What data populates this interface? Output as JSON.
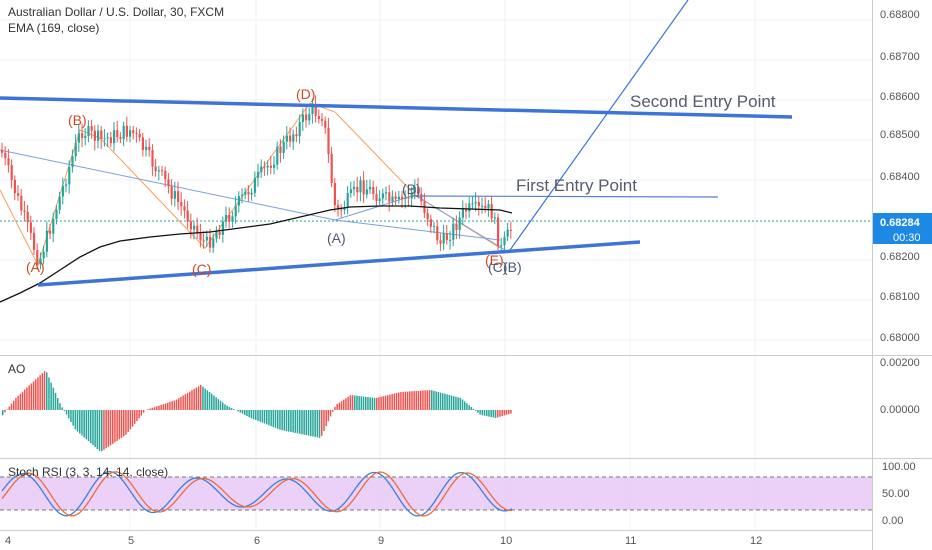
{
  "header": {
    "symbol_title": "Australian Dollar / U.S. Dollar, 30, FXCM",
    "indicator": "EMA (169, close)"
  },
  "annotations": {
    "second_entry": "Second Entry Point",
    "first_entry": "First Entry Point"
  },
  "wave_labels": {
    "a1": "(A)",
    "b1": "(B)",
    "c1": "(C)",
    "d1": "(D)",
    "a2": "(A)",
    "b2": "(B)",
    "e2": "(E)",
    "c2": "(C)",
    "b3": "(B)"
  },
  "price_axis": {
    "ticks": [
      "0.68800",
      "0.68700",
      "0.68600",
      "0.68500",
      "0.68400",
      "0.68200",
      "0.68100",
      "0.68000"
    ],
    "last_price": "0.68284",
    "countdown": "00:30"
  },
  "ao_panel": {
    "title": "AO",
    "ticks": [
      "0.00200",
      "0.00000"
    ]
  },
  "stoch_panel": {
    "title": "Stoch RSI (3, 3, 14, 14, close)",
    "ticks": [
      "100.00",
      "50.00",
      "0.00"
    ]
  },
  "time_axis": {
    "ticks": [
      "4",
      "5",
      "6",
      "9",
      "10",
      "11",
      "12"
    ]
  },
  "colors": {
    "up": "#26a69a",
    "down": "#ef5350",
    "trendline": "#3d74d8",
    "ema": "#111111",
    "wave_orange": "#f6a05a",
    "wave_label_red": "#d04a1e",
    "wave_label_blue": "#4a5a7a",
    "price_badge": "#1e88e5",
    "stoch_band": "#e7c8f7"
  }
}
